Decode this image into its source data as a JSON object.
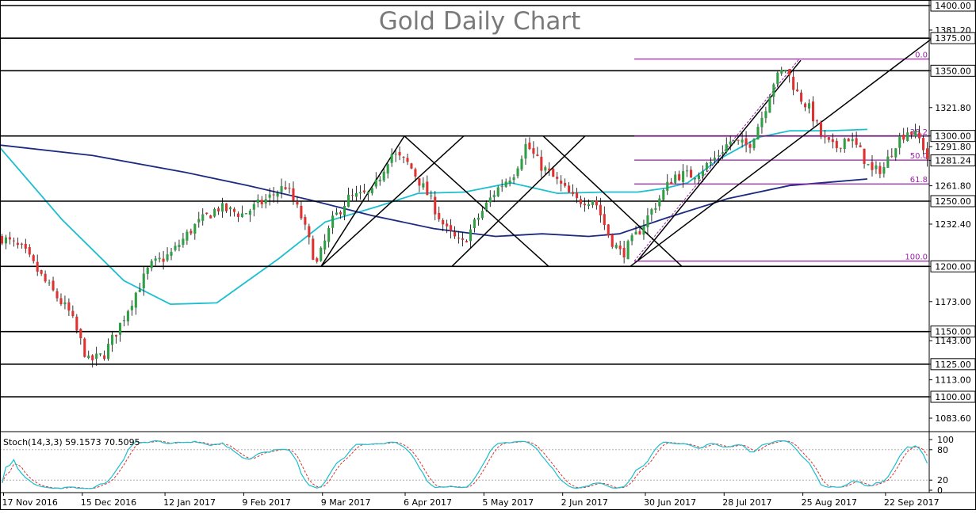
{
  "chart_data": {
    "type": "candlestick",
    "title": "Gold Daily Chart",
    "instrument": "Gold",
    "timeframe": "Daily",
    "price_axis": {
      "range": [
        1066,
        1412
      ],
      "ticks": [
        "1400.00",
        "1381.20",
        "1375.00",
        "1350.00",
        "1321.80",
        "1300.00",
        "1291.80",
        "1281.24",
        "1261.80",
        "1250.00",
        "1232.40",
        "1200.00",
        "1173.00",
        "1150.00",
        "1143.00",
        "1125.00",
        "1113.00",
        "1100.00",
        "1083.60"
      ],
      "tick_values": [
        1400,
        1381.2,
        1375,
        1350,
        1321.8,
        1300,
        1291.8,
        1281.24,
        1261.8,
        1250,
        1232.4,
        1200,
        1173,
        1150,
        1143,
        1125,
        1113,
        1100,
        1083.6
      ]
    },
    "date_axis": {
      "labels": [
        "17 Nov 2016",
        "15 Dec 2016",
        "12 Jan 2017",
        "9 Feb 2017",
        "9 Mar 2017",
        "6 Apr 2017",
        "5 May 2017",
        "2 Jun 2017",
        "30 Jun 2017",
        "28 Jul 2017",
        "25 Aug 2017",
        "22 Sep 2017"
      ],
      "bars": 236
    },
    "current_price": "1281.24",
    "horizontal_levels": [
      1400,
      1375,
      1350,
      1300,
      1250,
      1200,
      1150,
      1125,
      1100
    ],
    "fibonacci": {
      "labels": [
        "0.0",
        "38.2",
        "50.0",
        "61.8",
        "100.0"
      ],
      "levels": [
        0,
        38.2,
        50,
        61.8,
        100
      ],
      "high": 1359,
      "low": 1204,
      "color": "#9b1fa8"
    },
    "moving_averages": [
      {
        "color": "#1bbfcf",
        "points": [
          [
            0,
            1291
          ],
          [
            20,
            1236
          ],
          [
            40,
            1189
          ],
          [
            55,
            1171
          ],
          [
            70,
            1172
          ],
          [
            90,
            1206
          ],
          [
            105,
            1234
          ],
          [
            122,
            1246
          ],
          [
            135,
            1256
          ],
          [
            150,
            1257
          ],
          [
            165,
            1264
          ],
          [
            180,
            1256
          ],
          [
            195,
            1257
          ],
          [
            206,
            1257
          ],
          [
            215,
            1260
          ],
          [
            222,
            1264
          ],
          [
            232,
            1282
          ],
          [
            245,
            1299
          ],
          [
            255,
            1304
          ],
          [
            268,
            1304
          ],
          [
            280,
            1305
          ]
        ]
      },
      {
        "color": "#1c2a80",
        "points": [
          [
            0,
            1293
          ],
          [
            30,
            1285
          ],
          [
            60,
            1272
          ],
          [
            80,
            1262
          ],
          [
            100,
            1251
          ],
          [
            120,
            1239
          ],
          [
            140,
            1229
          ],
          [
            160,
            1223
          ],
          [
            175,
            1225
          ],
          [
            190,
            1223
          ],
          [
            200,
            1225
          ],
          [
            215,
            1237
          ],
          [
            235,
            1252
          ],
          [
            255,
            1262
          ],
          [
            270,
            1265
          ],
          [
            280,
            1267
          ]
        ]
      }
    ],
    "colors": {
      "bull": "#2f9e44",
      "bear": "#e03131",
      "wick": "#000000",
      "line": "#000000"
    },
    "stochastic": {
      "label": "Stoch(14,3,3) 59.1573 70.5095",
      "k_last": 59.1573,
      "d_last": 70.5095,
      "range": [
        0,
        100
      ],
      "ticks": [
        "100",
        "80",
        "20",
        "0"
      ],
      "tick_values": [
        100,
        80,
        20,
        0
      ],
      "k_color": "#1bbfcf",
      "d_color": "#e03131"
    }
  }
}
